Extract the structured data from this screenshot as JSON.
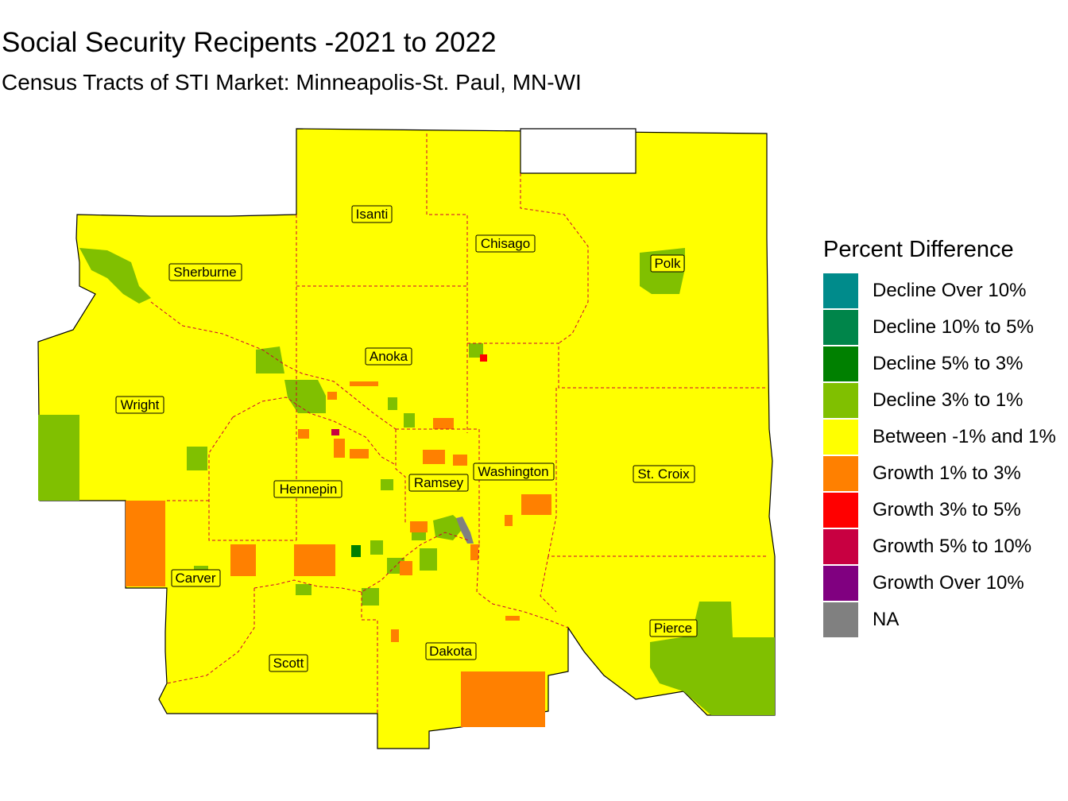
{
  "title": "Social Security Recipents -2021 to 2022",
  "subtitle": "Census Tracts of STI Market: Minneapolis-St. Paul, MN-WI",
  "legend": {
    "title": "Percent Difference",
    "items": [
      {
        "label": "Decline Over 10%",
        "color": "#008b8b"
      },
      {
        "label": "Decline 10% to 5%",
        "color": "#00854a"
      },
      {
        "label": "Decline 5% to 3%",
        "color": "#008000"
      },
      {
        "label": "Decline 3% to 1%",
        "color": "#80c000"
      },
      {
        "label": "Between -1% and 1%",
        "color": "#ffff00"
      },
      {
        "label": "Growth 1% to 3%",
        "color": "#ff8000"
      },
      {
        "label": "Growth 3% to 5%",
        "color": "#ff0000"
      },
      {
        "label": "Growth 5% to 10%",
        "color": "#c80041"
      },
      {
        "label": "Growth Over 10%",
        "color": "#800080"
      },
      {
        "label": "NA",
        "color": "#808080"
      }
    ]
  },
  "counties": {
    "isanti": "Isanti",
    "chisago": "Chisago",
    "sherburne": "Sherburne",
    "polk": "Polk",
    "anoka": "Anoka",
    "wright": "Wright",
    "hennepin": "Hennepin",
    "ramsey": "Ramsey",
    "washington": "Washington",
    "st_croix": "St. Croix",
    "carver": "Carver",
    "pierce": "Pierce",
    "scott": "Scott",
    "dakota": "Dakota"
  },
  "colors": {
    "border": "#000000",
    "county_line": "#cc0033"
  }
}
